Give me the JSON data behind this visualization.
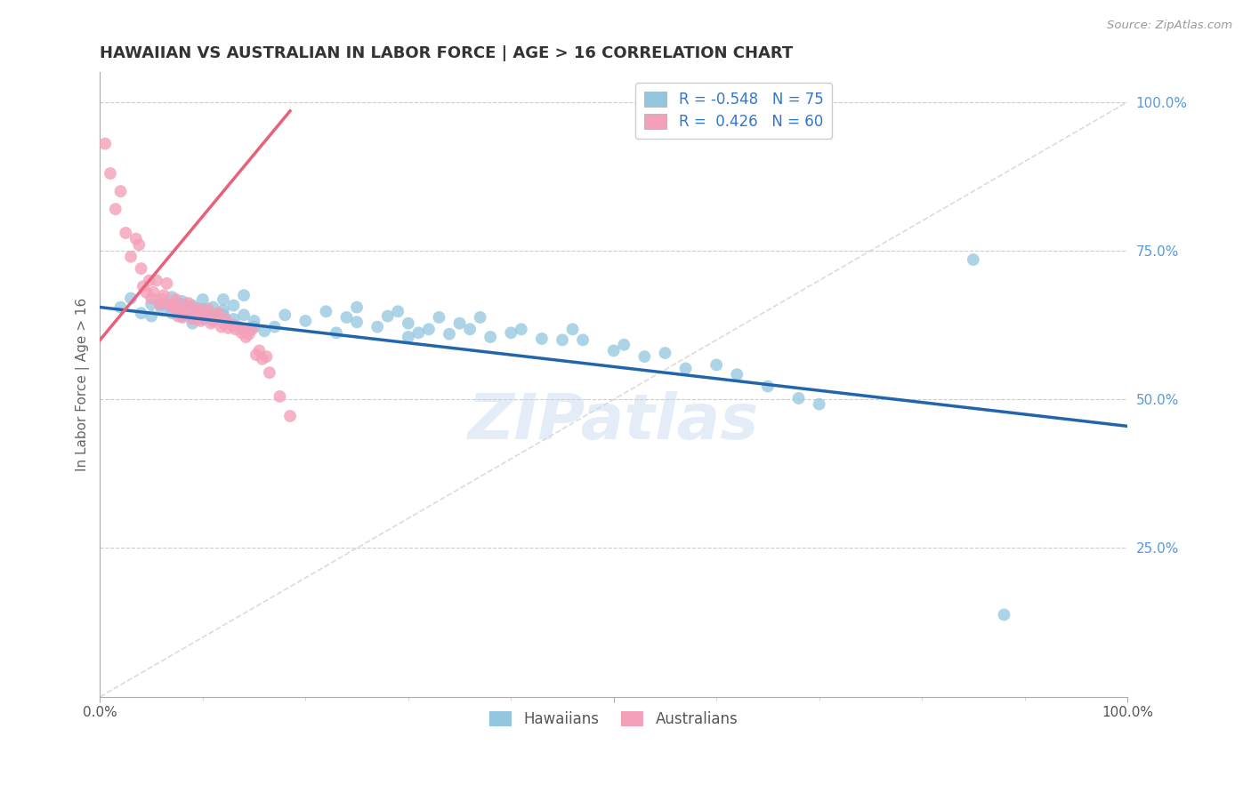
{
  "title": "HAWAIIAN VS AUSTRALIAN IN LABOR FORCE | AGE > 16 CORRELATION CHART",
  "source_text": "Source: ZipAtlas.com",
  "ylabel": "In Labor Force | Age > 16",
  "xmin": 0.0,
  "xmax": 1.0,
  "ymin": 0.0,
  "ymax": 1.05,
  "yticks": [
    0.25,
    0.5,
    0.75,
    1.0
  ],
  "ytick_labels": [
    "25.0%",
    "50.0%",
    "75.0%",
    "100.0%"
  ],
  "hawaiian_R": -0.548,
  "hawaiian_N": 75,
  "australian_R": 0.426,
  "australian_N": 60,
  "hawaiian_color": "#92c5de",
  "australian_color": "#f4a0b8",
  "hawaiian_line_color": "#2166ac",
  "australian_line_color": "#e8607a",
  "identity_line_color": "#cccccc",
  "bg_color": "#ffffff",
  "grid_color": "#cccccc",
  "title_color": "#333333",
  "right_tick_color": "#5599dd",
  "watermark": "ZIPatlas",
  "legend_R_color": "#3377cc",
  "h_line_x0": 0.0,
  "h_line_x1": 1.0,
  "h_line_y0": 0.655,
  "h_line_y1": 0.455,
  "a_line_x0": 0.0,
  "a_line_x1": 0.185,
  "a_line_y0": 0.6,
  "a_line_y1": 0.985,
  "hawaiian_scatter_x": [
    0.02,
    0.03,
    0.04,
    0.05,
    0.05,
    0.06,
    0.06,
    0.07,
    0.07,
    0.07,
    0.08,
    0.08,
    0.08,
    0.08,
    0.09,
    0.09,
    0.09,
    0.09,
    0.1,
    0.1,
    0.1,
    0.1,
    0.11,
    0.11,
    0.11,
    0.12,
    0.12,
    0.12,
    0.13,
    0.13,
    0.13,
    0.14,
    0.14,
    0.15,
    0.15,
    0.16,
    0.17,
    0.18,
    0.2,
    0.22,
    0.23,
    0.24,
    0.25,
    0.25,
    0.27,
    0.28,
    0.29,
    0.3,
    0.3,
    0.31,
    0.32,
    0.33,
    0.34,
    0.35,
    0.36,
    0.37,
    0.38,
    0.4,
    0.41,
    0.43,
    0.45,
    0.46,
    0.47,
    0.5,
    0.51,
    0.53,
    0.55,
    0.57,
    0.6,
    0.62,
    0.65,
    0.68,
    0.7,
    0.85,
    0.88
  ],
  "hawaiian_scatter_y": [
    0.655,
    0.67,
    0.645,
    0.66,
    0.64,
    0.66,
    0.65,
    0.672,
    0.655,
    0.645,
    0.64,
    0.66,
    0.665,
    0.645,
    0.655,
    0.658,
    0.638,
    0.628,
    0.652,
    0.642,
    0.635,
    0.668,
    0.642,
    0.655,
    0.635,
    0.65,
    0.668,
    0.642,
    0.635,
    0.658,
    0.625,
    0.675,
    0.642,
    0.632,
    0.622,
    0.615,
    0.622,
    0.642,
    0.632,
    0.648,
    0.612,
    0.638,
    0.655,
    0.63,
    0.622,
    0.64,
    0.648,
    0.605,
    0.628,
    0.612,
    0.618,
    0.638,
    0.61,
    0.628,
    0.618,
    0.638,
    0.605,
    0.612,
    0.618,
    0.602,
    0.6,
    0.618,
    0.6,
    0.582,
    0.592,
    0.572,
    0.578,
    0.552,
    0.558,
    0.542,
    0.522,
    0.502,
    0.492,
    0.735,
    0.138
  ],
  "australian_scatter_x": [
    0.005,
    0.01,
    0.015,
    0.02,
    0.025,
    0.03,
    0.035,
    0.038,
    0.04,
    0.042,
    0.045,
    0.048,
    0.05,
    0.052,
    0.055,
    0.058,
    0.06,
    0.062,
    0.065,
    0.068,
    0.07,
    0.072,
    0.074,
    0.076,
    0.078,
    0.08,
    0.082,
    0.084,
    0.086,
    0.09,
    0.092,
    0.094,
    0.096,
    0.098,
    0.1,
    0.102,
    0.105,
    0.108,
    0.11,
    0.112,
    0.115,
    0.118,
    0.12,
    0.122,
    0.125,
    0.128,
    0.132,
    0.135,
    0.138,
    0.14,
    0.142,
    0.145,
    0.148,
    0.152,
    0.155,
    0.158,
    0.162,
    0.165,
    0.175,
    0.185
  ],
  "australian_scatter_y": [
    0.93,
    0.88,
    0.82,
    0.85,
    0.78,
    0.74,
    0.77,
    0.76,
    0.72,
    0.69,
    0.68,
    0.7,
    0.67,
    0.68,
    0.7,
    0.66,
    0.668,
    0.675,
    0.695,
    0.658,
    0.66,
    0.655,
    0.668,
    0.64,
    0.648,
    0.638,
    0.645,
    0.658,
    0.662,
    0.635,
    0.64,
    0.648,
    0.652,
    0.632,
    0.638,
    0.645,
    0.652,
    0.628,
    0.632,
    0.64,
    0.645,
    0.622,
    0.628,
    0.635,
    0.62,
    0.625,
    0.618,
    0.622,
    0.612,
    0.618,
    0.605,
    0.61,
    0.618,
    0.575,
    0.582,
    0.568,
    0.572,
    0.545,
    0.505,
    0.472
  ]
}
